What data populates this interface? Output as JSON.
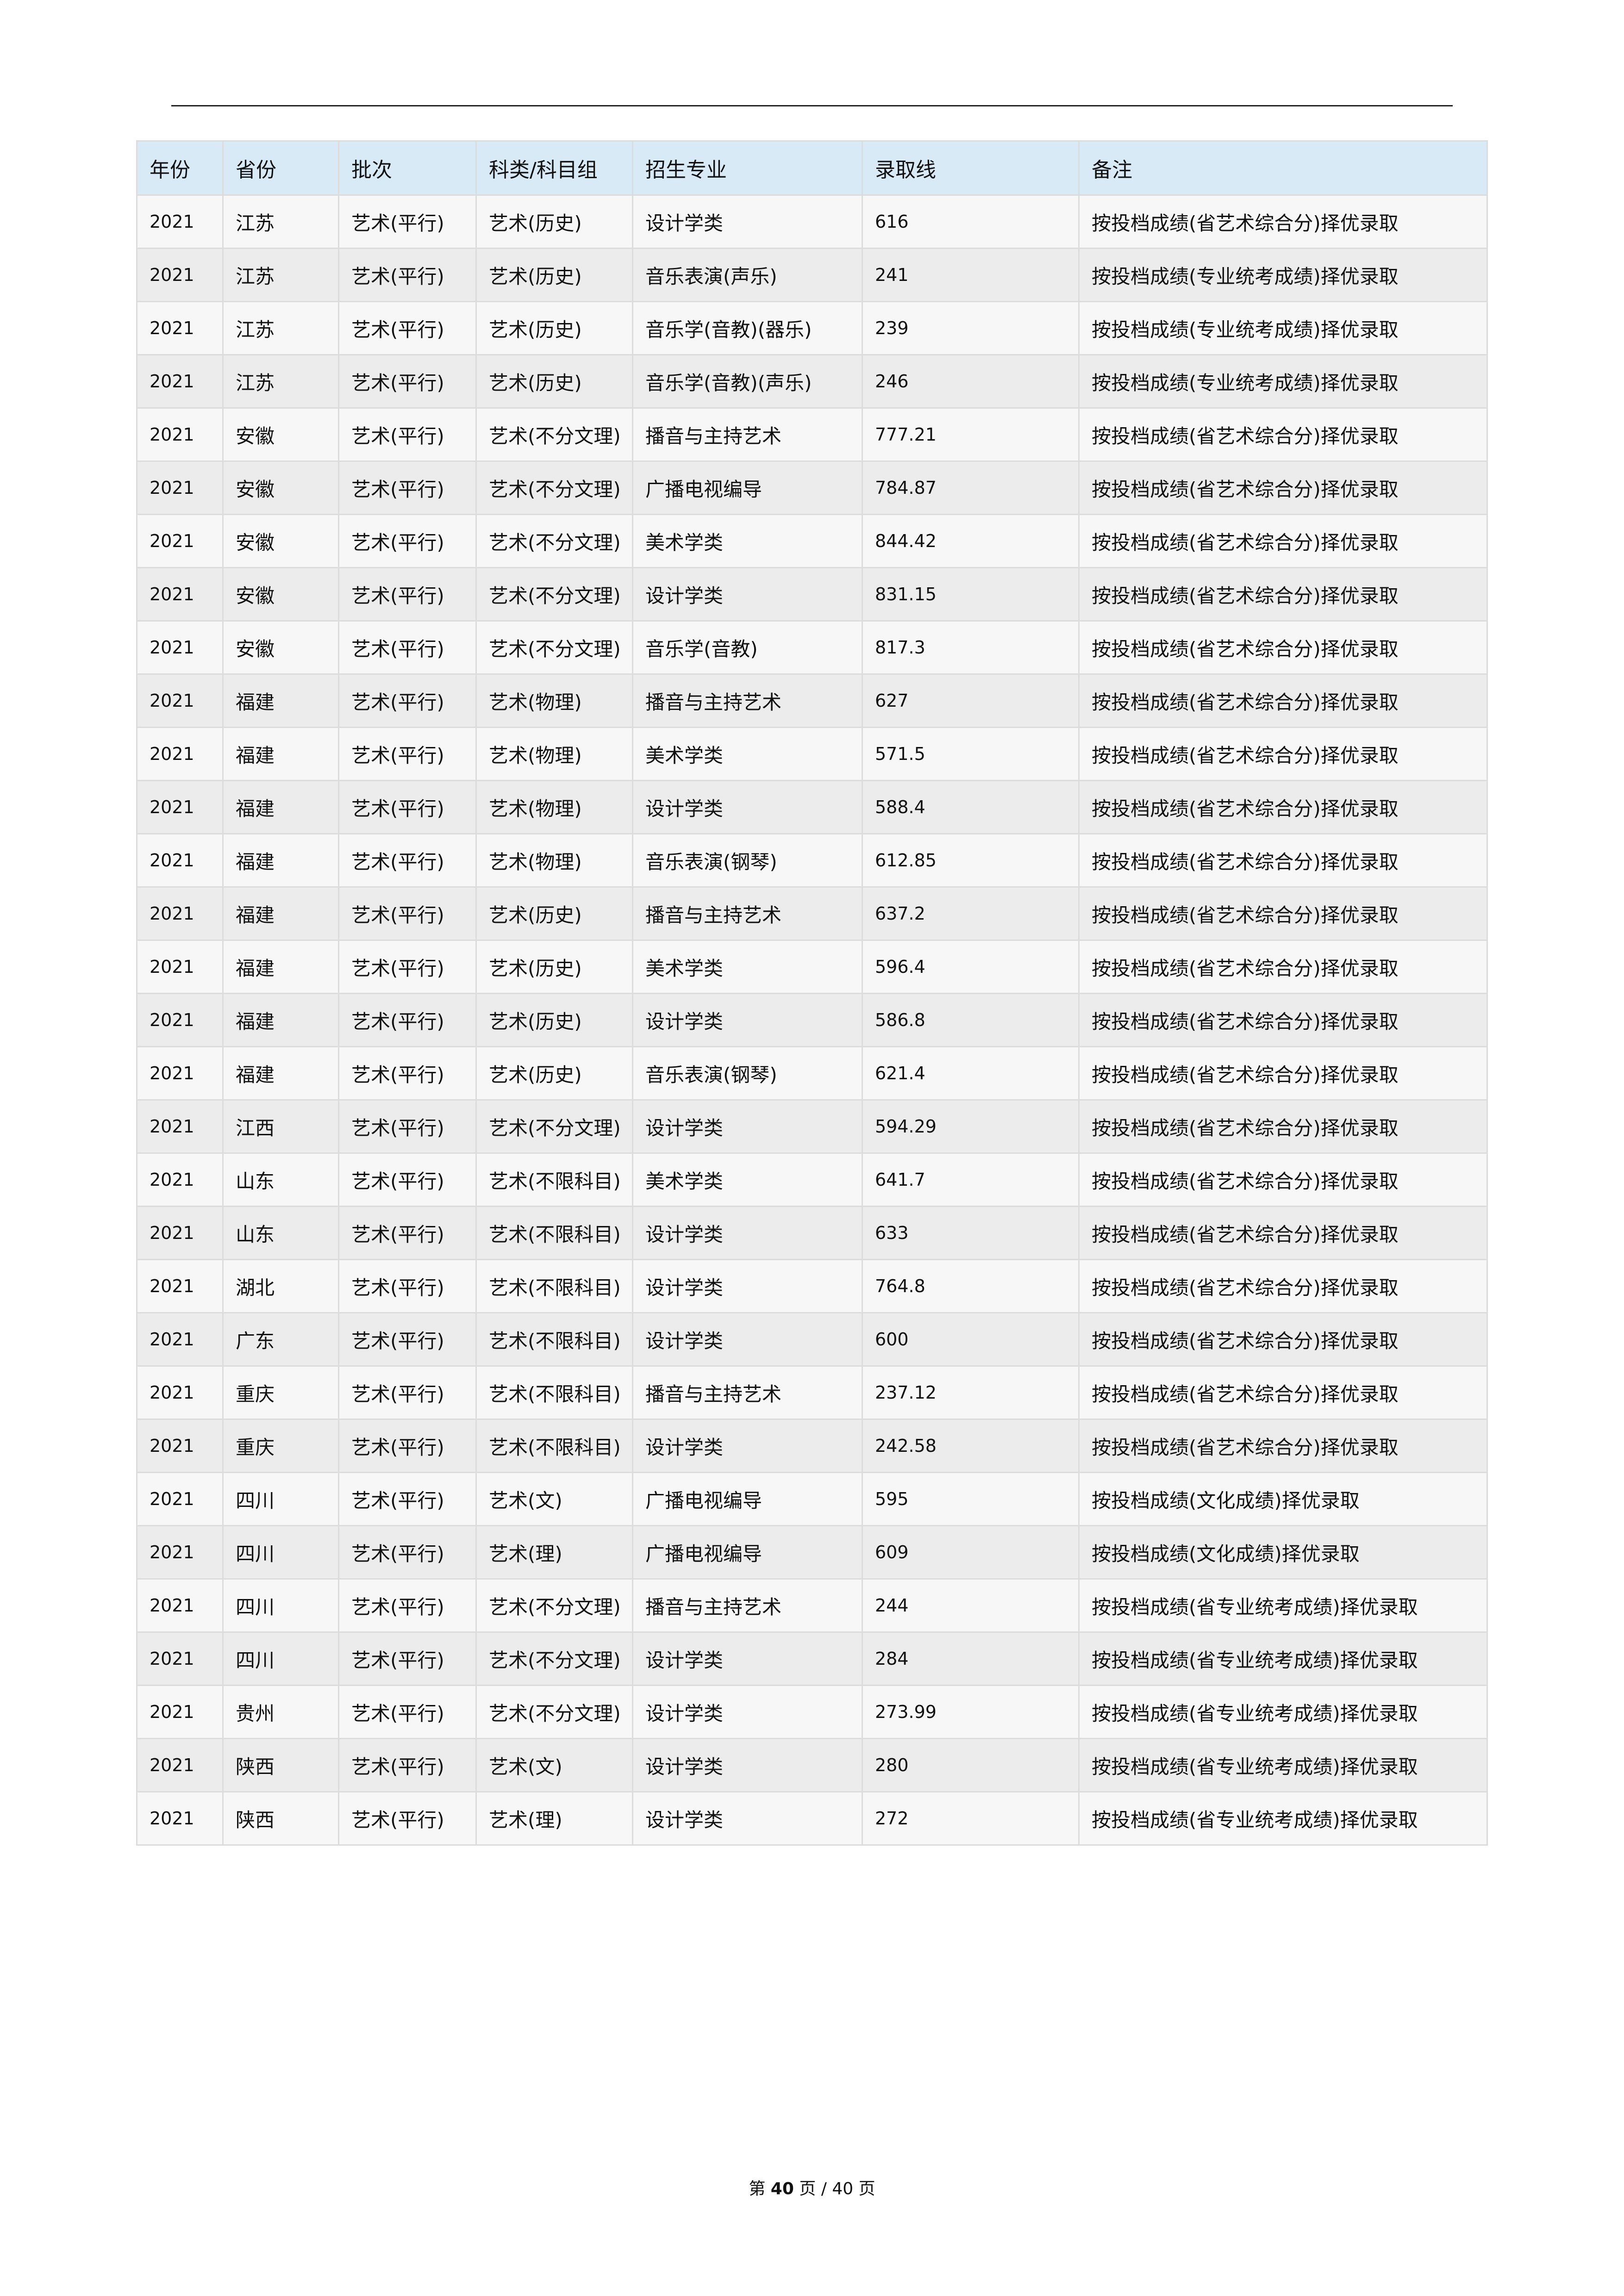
{
  "table": {
    "headers": [
      "年份",
      "省份",
      "批次",
      "科类/科目组",
      "招生专业",
      "录取线",
      "备注"
    ],
    "rows": [
      [
        "2021",
        "江苏",
        "艺术(平行)",
        "艺术(历史)",
        "设计学类",
        "616",
        "按投档成绩(省艺术综合分)择优录取"
      ],
      [
        "2021",
        "江苏",
        "艺术(平行)",
        "艺术(历史)",
        "音乐表演(声乐)",
        "241",
        "按投档成绩(专业统考成绩)择优录取"
      ],
      [
        "2021",
        "江苏",
        "艺术(平行)",
        "艺术(历史)",
        "音乐学(音教)(器乐)",
        "239",
        "按投档成绩(专业统考成绩)择优录取"
      ],
      [
        "2021",
        "江苏",
        "艺术(平行)",
        "艺术(历史)",
        "音乐学(音教)(声乐)",
        "246",
        "按投档成绩(专业统考成绩)择优录取"
      ],
      [
        "2021",
        "安徽",
        "艺术(平行)",
        "艺术(不分文理)",
        "播音与主持艺术",
        "777.21",
        "按投档成绩(省艺术综合分)择优录取"
      ],
      [
        "2021",
        "安徽",
        "艺术(平行)",
        "艺术(不分文理)",
        "广播电视编导",
        "784.87",
        "按投档成绩(省艺术综合分)择优录取"
      ],
      [
        "2021",
        "安徽",
        "艺术(平行)",
        "艺术(不分文理)",
        "美术学类",
        "844.42",
        "按投档成绩(省艺术综合分)择优录取"
      ],
      [
        "2021",
        "安徽",
        "艺术(平行)",
        "艺术(不分文理)",
        "设计学类",
        "831.15",
        "按投档成绩(省艺术综合分)择优录取"
      ],
      [
        "2021",
        "安徽",
        "艺术(平行)",
        "艺术(不分文理)",
        "音乐学(音教)",
        "817.3",
        "按投档成绩(省艺术综合分)择优录取"
      ],
      [
        "2021",
        "福建",
        "艺术(平行)",
        "艺术(物理)",
        "播音与主持艺术",
        "627",
        "按投档成绩(省艺术综合分)择优录取"
      ],
      [
        "2021",
        "福建",
        "艺术(平行)",
        "艺术(物理)",
        "美术学类",
        "571.5",
        "按投档成绩(省艺术综合分)择优录取"
      ],
      [
        "2021",
        "福建",
        "艺术(平行)",
        "艺术(物理)",
        "设计学类",
        "588.4",
        "按投档成绩(省艺术综合分)择优录取"
      ],
      [
        "2021",
        "福建",
        "艺术(平行)",
        "艺术(物理)",
        "音乐表演(钢琴)",
        "612.85",
        "按投档成绩(省艺术综合分)择优录取"
      ],
      [
        "2021",
        "福建",
        "艺术(平行)",
        "艺术(历史)",
        "播音与主持艺术",
        "637.2",
        "按投档成绩(省艺术综合分)择优录取"
      ],
      [
        "2021",
        "福建",
        "艺术(平行)",
        "艺术(历史)",
        "美术学类",
        "596.4",
        "按投档成绩(省艺术综合分)择优录取"
      ],
      [
        "2021",
        "福建",
        "艺术(平行)",
        "艺术(历史)",
        "设计学类",
        "586.8",
        "按投档成绩(省艺术综合分)择优录取"
      ],
      [
        "2021",
        "福建",
        "艺术(平行)",
        "艺术(历史)",
        "音乐表演(钢琴)",
        "621.4",
        "按投档成绩(省艺术综合分)择优录取"
      ],
      [
        "2021",
        "江西",
        "艺术(平行)",
        "艺术(不分文理)",
        "设计学类",
        "594.29",
        "按投档成绩(省艺术综合分)择优录取"
      ],
      [
        "2021",
        "山东",
        "艺术(平行)",
        "艺术(不限科目)",
        "美术学类",
        "641.7",
        "按投档成绩(省艺术综合分)择优录取"
      ],
      [
        "2021",
        "山东",
        "艺术(平行)",
        "艺术(不限科目)",
        "设计学类",
        "633",
        "按投档成绩(省艺术综合分)择优录取"
      ],
      [
        "2021",
        "湖北",
        "艺术(平行)",
        "艺术(不限科目)",
        "设计学类",
        "764.8",
        "按投档成绩(省艺术综合分)择优录取"
      ],
      [
        "2021",
        "广东",
        "艺术(平行)",
        "艺术(不限科目)",
        "设计学类",
        "600",
        "按投档成绩(省艺术综合分)择优录取"
      ],
      [
        "2021",
        "重庆",
        "艺术(平行)",
        "艺术(不限科目)",
        "播音与主持艺术",
        "237.12",
        "按投档成绩(省艺术综合分)择优录取"
      ],
      [
        "2021",
        "重庆",
        "艺术(平行)",
        "艺术(不限科目)",
        "设计学类",
        "242.58",
        "按投档成绩(省艺术综合分)择优录取"
      ],
      [
        "2021",
        "四川",
        "艺术(平行)",
        "艺术(文)",
        "广播电视编导",
        "595",
        "按投档成绩(文化成绩)择优录取"
      ],
      [
        "2021",
        "四川",
        "艺术(平行)",
        "艺术(理)",
        "广播电视编导",
        "609",
        "按投档成绩(文化成绩)择优录取"
      ],
      [
        "2021",
        "四川",
        "艺术(平行)",
        "艺术(不分文理)",
        "播音与主持艺术",
        "244",
        "按投档成绩(省专业统考成绩)择优录取"
      ],
      [
        "2021",
        "四川",
        "艺术(平行)",
        "艺术(不分文理)",
        "设计学类",
        "284",
        "按投档成绩(省专业统考成绩)择优录取"
      ],
      [
        "2021",
        "贵州",
        "艺术(平行)",
        "艺术(不分文理)",
        "设计学类",
        "273.99",
        "按投档成绩(省专业统考成绩)择优录取"
      ],
      [
        "2021",
        "陕西",
        "艺术(平行)",
        "艺术(文)",
        "设计学类",
        "280",
        "按投档成绩(省专业统考成绩)择优录取"
      ],
      [
        "2021",
        "陕西",
        "艺术(平行)",
        "艺术(理)",
        "设计学类",
        "272",
        "按投档成绩(省专业统考成绩)择优录取"
      ]
    ]
  },
  "footer": {
    "prefix": "第",
    "current": "40",
    "mid": "页  /",
    "total": "40",
    "suffix": "页"
  }
}
